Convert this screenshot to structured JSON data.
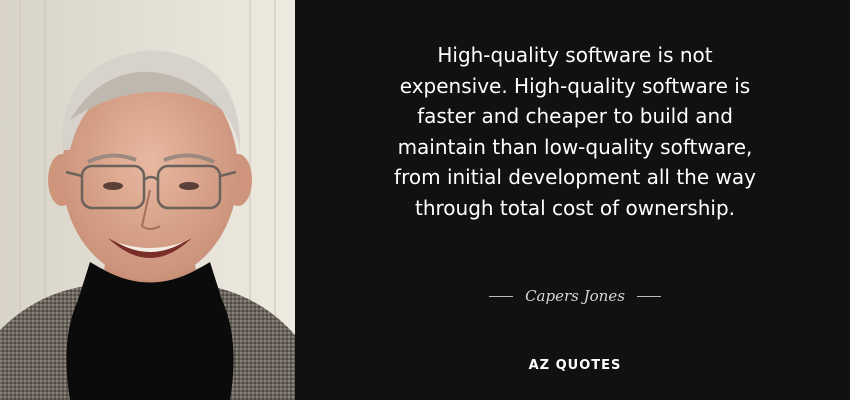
{
  "quote": {
    "text": "High-quality software is not\nexpensive. High-quality software is\nfaster and cheaper to build and\nmaintain than low-quality software,\nfrom initial development all the way\nthrough total cost of ownership."
  },
  "author": {
    "name": "Capers Jones"
  },
  "brand": {
    "logo_text": "AZ QUOTES"
  },
  "colors": {
    "background": "#111111",
    "text": "#ffffff",
    "author_text": "#d6d6d6"
  }
}
